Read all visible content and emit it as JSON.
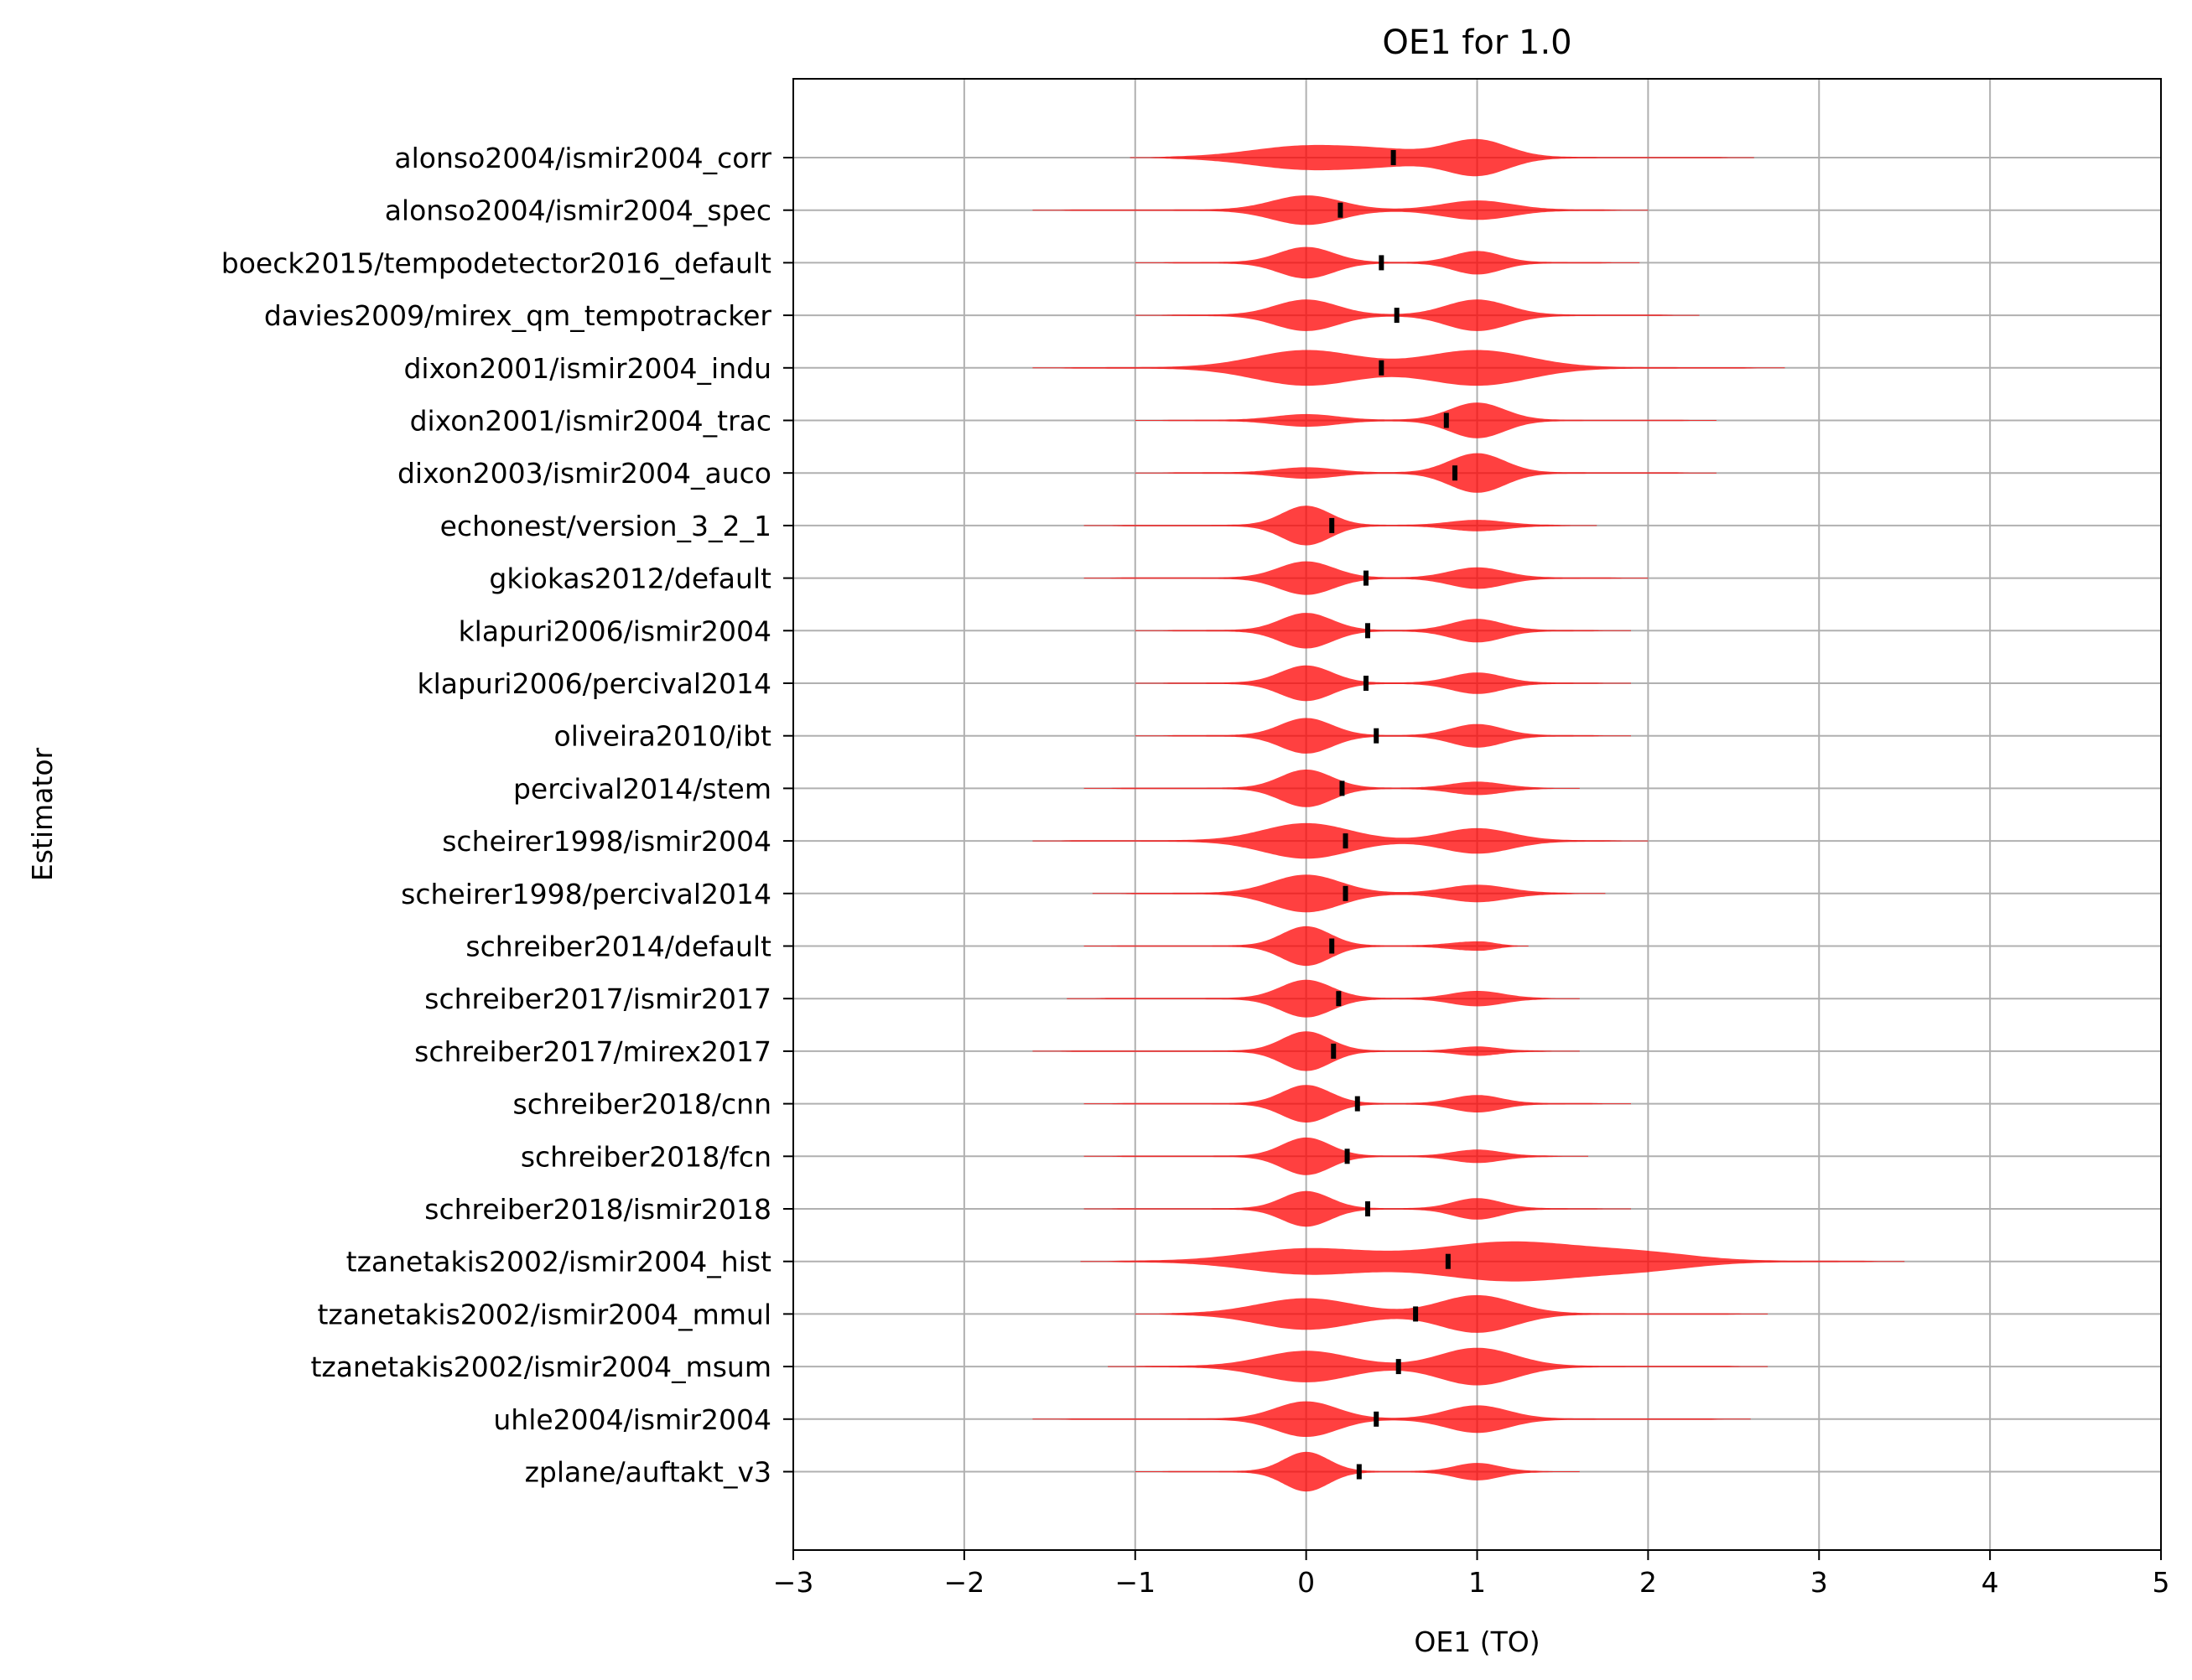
{
  "chart_data": {
    "type": "violin",
    "title": "OE1 for 1.0",
    "xlabel": "OE1 (TO)",
    "ylabel": "Estimator",
    "xlim": [
      -3,
      5
    ],
    "x_ticks": [
      -3,
      -2,
      -1,
      0,
      1,
      2,
      3,
      4,
      5
    ],
    "x_tick_labels": [
      "−3",
      "−2",
      "−1",
      "0",
      "1",
      "2",
      "3",
      "4",
      "5"
    ],
    "grid": true,
    "orientation": "horizontal",
    "violin_color": "#ff0000",
    "median_marker_color": "#000000",
    "estimators": [
      {
        "name": "alonso2004/ismir2004_corr",
        "range": [
          -1.03,
          2.62
        ],
        "median": 0.51,
        "peaks": [
          [
            0.0,
            0.55,
            0.32
          ],
          [
            1.0,
            0.85,
            0.18
          ],
          [
            0.5,
            0.25,
            0.25
          ]
        ]
      },
      {
        "name": "alonso2004/ismir2004_spec",
        "range": [
          -1.6,
          2.0
        ],
        "median": 0.2,
        "peaks": [
          [
            0.0,
            0.7,
            0.2
          ],
          [
            1.0,
            0.45,
            0.2
          ]
        ]
      },
      {
        "name": "boeck2015/tempodetector2016_default",
        "range": [
          -1.0,
          1.95
        ],
        "median": 0.44,
        "peaks": [
          [
            0.0,
            0.75,
            0.16
          ],
          [
            1.0,
            0.55,
            0.14
          ]
        ]
      },
      {
        "name": "davies2009/mirex_qm_tempotracker",
        "range": [
          -1.0,
          2.3
        ],
        "median": 0.53,
        "peaks": [
          [
            0.0,
            0.75,
            0.18
          ],
          [
            1.0,
            0.75,
            0.18
          ]
        ]
      },
      {
        "name": "dixon2001/ismir2004_indu",
        "range": [
          -1.6,
          2.8
        ],
        "median": 0.44,
        "peaks": [
          [
            0.0,
            0.85,
            0.3
          ],
          [
            1.0,
            0.85,
            0.3
          ]
        ]
      },
      {
        "name": "dixon2001/ismir2004_trac",
        "range": [
          -1.0,
          2.4
        ],
        "median": 0.82,
        "peaks": [
          [
            0.0,
            0.28,
            0.18
          ],
          [
            1.0,
            0.85,
            0.16
          ]
        ]
      },
      {
        "name": "dixon2003/ismir2004_auco",
        "range": [
          -1.0,
          2.4
        ],
        "median": 0.87,
        "peaks": [
          [
            0.0,
            0.25,
            0.17
          ],
          [
            1.0,
            0.95,
            0.16
          ]
        ]
      },
      {
        "name": "echonest/version_3_2_1",
        "range": [
          -1.3,
          1.7
        ],
        "median": 0.15,
        "peaks": [
          [
            0.0,
            0.95,
            0.14
          ],
          [
            1.0,
            0.25,
            0.16
          ]
        ]
      },
      {
        "name": "gkiokas2012/default",
        "range": [
          -1.3,
          2.0
        ],
        "median": 0.35,
        "peaks": [
          [
            0.0,
            0.8,
            0.16
          ],
          [
            1.0,
            0.5,
            0.16
          ]
        ]
      },
      {
        "name": "klapuri2006/ismir2004",
        "range": [
          -1.0,
          1.9
        ],
        "median": 0.36,
        "peaks": [
          [
            0.0,
            0.85,
            0.15
          ],
          [
            1.0,
            0.55,
            0.15
          ]
        ]
      },
      {
        "name": "klapuri2006/percival2014",
        "range": [
          -1.0,
          1.9
        ],
        "median": 0.35,
        "peaks": [
          [
            0.0,
            0.85,
            0.15
          ],
          [
            1.0,
            0.5,
            0.15
          ]
        ]
      },
      {
        "name": "oliveira2010/ibt",
        "range": [
          -1.0,
          1.9
        ],
        "median": 0.41,
        "peaks": [
          [
            0.0,
            0.85,
            0.15
          ],
          [
            1.0,
            0.55,
            0.15
          ]
        ]
      },
      {
        "name": "percival2014/stem",
        "range": [
          -1.3,
          1.6
        ],
        "median": 0.21,
        "peaks": [
          [
            0.0,
            0.9,
            0.15
          ],
          [
            1.0,
            0.3,
            0.15
          ]
        ]
      },
      {
        "name": "scheirer1998/ismir2004",
        "range": [
          -1.6,
          2.0
        ],
        "median": 0.23,
        "peaks": [
          [
            0.0,
            0.85,
            0.25
          ],
          [
            1.0,
            0.6,
            0.2
          ]
        ]
      },
      {
        "name": "scheirer1998/percival2014",
        "range": [
          -1.25,
          1.75
        ],
        "median": 0.23,
        "peaks": [
          [
            0.0,
            0.9,
            0.2
          ],
          [
            1.0,
            0.4,
            0.18
          ]
        ]
      },
      {
        "name": "schreiber2014/default",
        "range": [
          -1.3,
          1.3
        ],
        "median": 0.15,
        "peaks": [
          [
            0.0,
            0.95,
            0.14
          ],
          [
            1.0,
            0.2,
            0.15
          ]
        ]
      },
      {
        "name": "schreiber2017/ismir2017",
        "range": [
          -1.4,
          1.6
        ],
        "median": 0.19,
        "peaks": [
          [
            0.0,
            0.9,
            0.15
          ],
          [
            1.0,
            0.35,
            0.15
          ]
        ]
      },
      {
        "name": "schreiber2017/mirex2017",
        "range": [
          -1.6,
          1.6
        ],
        "median": 0.16,
        "peaks": [
          [
            0.0,
            0.95,
            0.14
          ],
          [
            1.0,
            0.2,
            0.12
          ]
        ]
      },
      {
        "name": "schreiber2018/cnn",
        "range": [
          -1.3,
          1.9
        ],
        "median": 0.3,
        "peaks": [
          [
            0.0,
            0.9,
            0.14
          ],
          [
            1.0,
            0.4,
            0.14
          ]
        ]
      },
      {
        "name": "schreiber2018/fcn",
        "range": [
          -1.3,
          1.65
        ],
        "median": 0.24,
        "peaks": [
          [
            0.0,
            0.9,
            0.14
          ],
          [
            1.0,
            0.3,
            0.14
          ]
        ]
      },
      {
        "name": "schreiber2018/ismir2018",
        "range": [
          -1.3,
          1.9
        ],
        "median": 0.36,
        "peaks": [
          [
            0.0,
            0.85,
            0.14
          ],
          [
            1.0,
            0.5,
            0.14
          ]
        ]
      },
      {
        "name": "tzanetakis2002/ismir2004_hist",
        "range": [
          -1.32,
          3.5
        ],
        "median": 0.83,
        "peaks": [
          [
            0.0,
            0.6,
            0.35
          ],
          [
            1.2,
            0.95,
            0.45
          ],
          [
            2.0,
            0.3,
            0.3
          ]
        ]
      },
      {
        "name": "tzanetakis2002/ismir2004_mmul",
        "range": [
          -1.0,
          2.7
        ],
        "median": 0.64,
        "peaks": [
          [
            0.0,
            0.75,
            0.28
          ],
          [
            1.0,
            0.9,
            0.22
          ]
        ]
      },
      {
        "name": "tzanetakis2002/ismir2004_msum",
        "range": [
          -1.16,
          2.7
        ],
        "median": 0.54,
        "peaks": [
          [
            0.0,
            0.75,
            0.25
          ],
          [
            1.0,
            0.9,
            0.22
          ]
        ]
      },
      {
        "name": "uhle2004/ismir2004",
        "range": [
          -1.6,
          2.6
        ],
        "median": 0.41,
        "peaks": [
          [
            0.0,
            0.85,
            0.18
          ],
          [
            1.0,
            0.65,
            0.18
          ]
        ]
      },
      {
        "name": "zplane/auftakt_v3",
        "range": [
          -1.0,
          1.6
        ],
        "median": 0.31,
        "peaks": [
          [
            0.0,
            0.95,
            0.13
          ],
          [
            1.0,
            0.4,
            0.13
          ]
        ]
      }
    ]
  }
}
